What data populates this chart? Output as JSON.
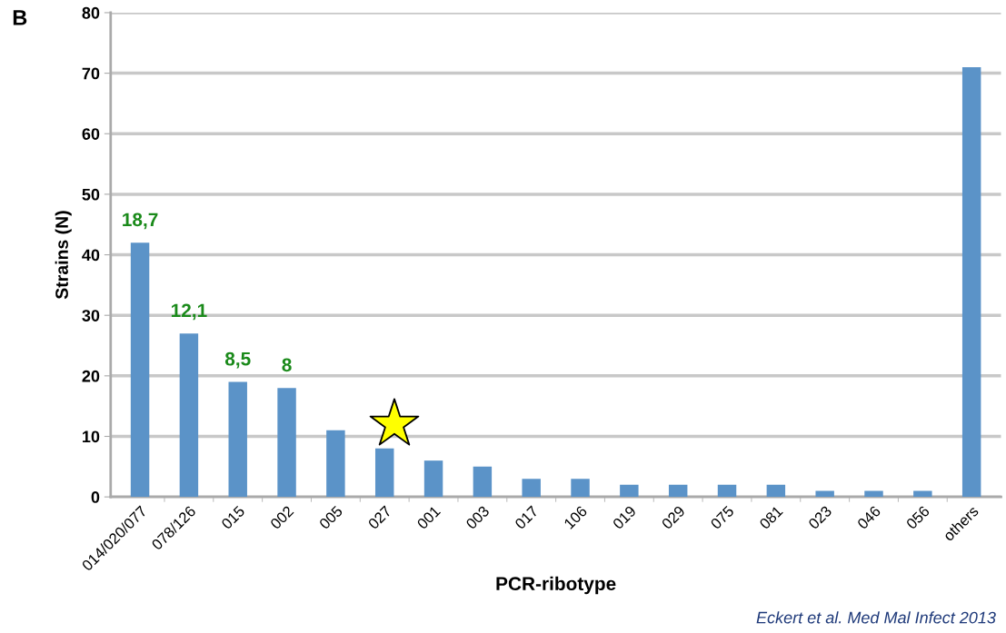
{
  "chart_data": {
    "type": "bar",
    "xlabel": "PCR-ribotype",
    "ylabel": "Strains (N)",
    "categories": [
      "014/020/077",
      "078/126",
      "015",
      "002",
      "005",
      "027",
      "001",
      "003",
      "017",
      "106",
      "019",
      "029",
      "075",
      "081",
      "023",
      "046",
      "056",
      "others"
    ],
    "values": [
      42,
      27,
      19,
      18,
      11,
      8,
      6,
      5,
      3,
      3,
      2,
      2,
      2,
      2,
      1,
      1,
      1,
      71
    ],
    "color": "#5b93c8",
    "ylim": [
      0,
      80
    ],
    "yticks": [
      0,
      10,
      20,
      30,
      40,
      50,
      60,
      70,
      80
    ],
    "grid": "y",
    "annotations": [
      "B",
      {
        "text": "18,7",
        "x": "014/020/077",
        "y": 42
      },
      {
        "text": "12,1",
        "x": "078/126",
        "y": 27
      },
      {
        "text": "8,5",
        "x": "015",
        "y": 19
      },
      {
        "text": "8",
        "x": "002",
        "y": 18
      },
      "Eckert et al. Med Mal Infect 2013"
    ]
  }
}
